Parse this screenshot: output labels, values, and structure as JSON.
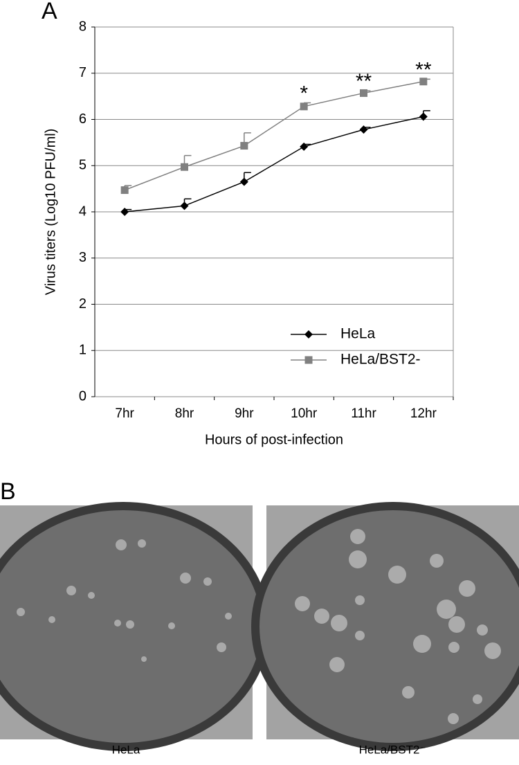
{
  "panels": [
    "A",
    "B"
  ],
  "chart_data": {
    "type": "line",
    "x_label": "Hours of post-infection",
    "y_label": "Virus titers (Log10 PFU/ml)",
    "categories": [
      "7hr",
      "8hr",
      "9hr",
      "10hr",
      "11hr",
      "12hr"
    ],
    "series": [
      {
        "name": "HeLa",
        "color": "#000000",
        "marker": "diamond",
        "values": [
          4.0,
          4.13,
          4.65,
          5.41,
          5.78,
          6.06
        ],
        "errors": [
          0.05,
          0.15,
          0.2,
          0.05,
          0.05,
          0.13
        ]
      },
      {
        "name": "HeLa/BST2-",
        "color": "#808080",
        "marker": "square",
        "values": [
          4.47,
          4.97,
          5.43,
          6.28,
          6.57,
          6.82
        ],
        "errors": [
          0.1,
          0.25,
          0.28,
          0.08,
          0.05,
          0.05
        ]
      }
    ],
    "significance": [
      null,
      null,
      null,
      "*",
      "**",
      "**"
    ],
    "ylim": [
      0,
      8
    ],
    "yticks": [
      0,
      1,
      2,
      3,
      4,
      5,
      6,
      7,
      8
    ],
    "grid": true,
    "legend": "lower right"
  },
  "images": [
    {
      "caption": "HeLa"
    },
    {
      "caption": "HeLa/BST2⁻"
    }
  ]
}
